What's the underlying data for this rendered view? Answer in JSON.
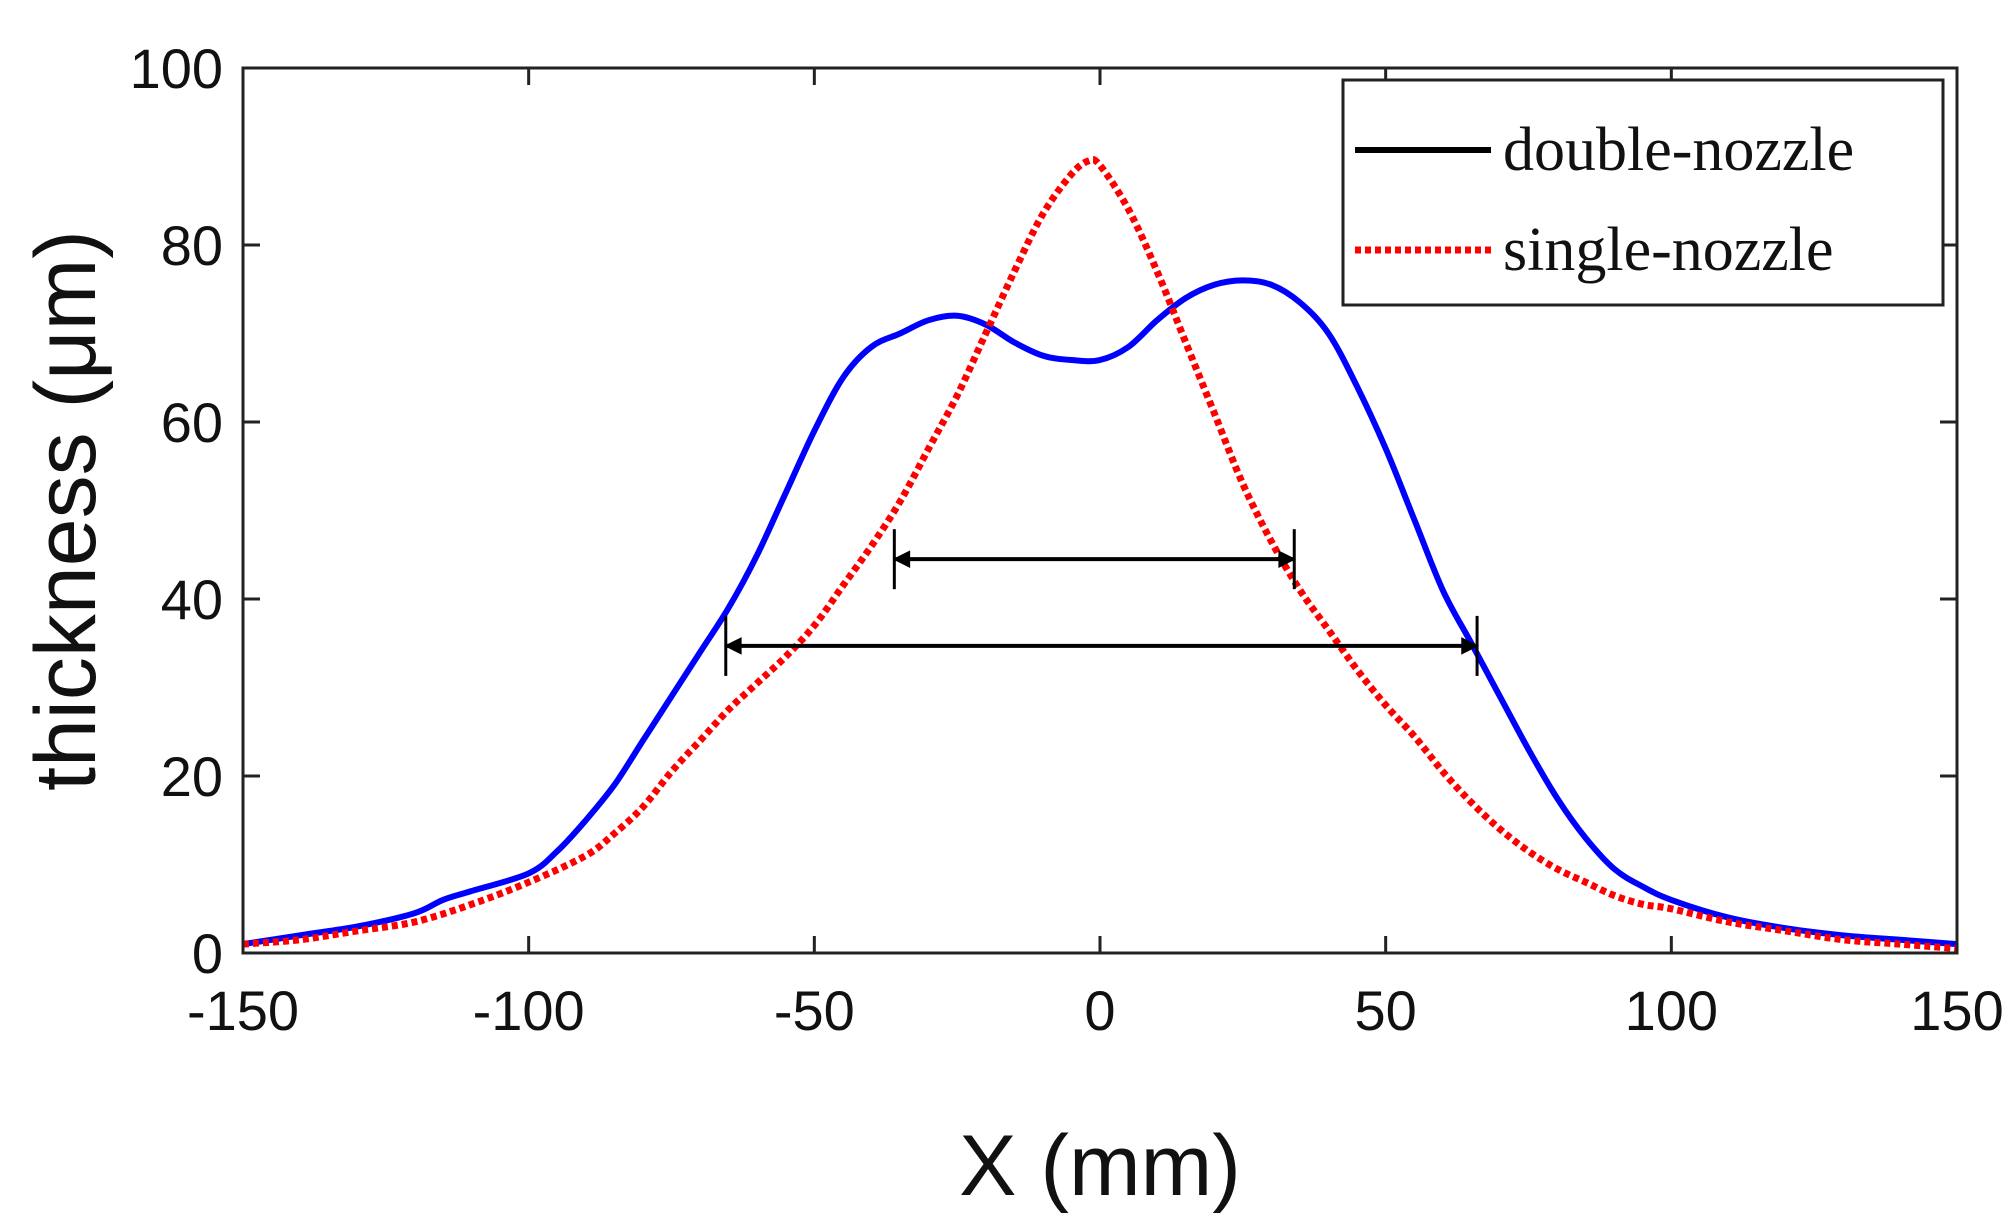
{
  "chart_data": {
    "type": "line",
    "title": "",
    "xlabel": "X (mm)",
    "ylabel": "thickness (μm)",
    "xlim": [
      -150,
      150
    ],
    "ylim": [
      0,
      100
    ],
    "xticks": [
      -150,
      -100,
      -50,
      0,
      50,
      100,
      150
    ],
    "yticks": [
      0,
      20,
      40,
      60,
      80,
      100
    ],
    "grid": false,
    "legend_position": "top-right",
    "series": [
      {
        "name": "double-nozzle",
        "line_color": "#0000ff",
        "legend_color": "#000000",
        "style": "solid",
        "x": [
          -150,
          -140,
          -130,
          -120,
          -115,
          -110,
          -100,
          -95,
          -90,
          -85,
          -80,
          -75,
          -70,
          -65,
          -60,
          -55,
          -50,
          -45,
          -40,
          -35,
          -30,
          -25,
          -20,
          -15,
          -10,
          -5,
          0,
          5,
          10,
          15,
          20,
          25,
          30,
          35,
          40,
          45,
          50,
          55,
          60,
          65,
          70,
          75,
          80,
          85,
          90,
          95,
          100,
          110,
          120,
          130,
          140,
          150
        ],
        "values": [
          1,
          2,
          3,
          4.5,
          6,
          7,
          9,
          11.5,
          15,
          19,
          24,
          29,
          34,
          39,
          45,
          52,
          59,
          65,
          68.5,
          70,
          71.5,
          72,
          71,
          69,
          67.5,
          67,
          67,
          68.5,
          71.5,
          74,
          75.5,
          76,
          75.5,
          73.5,
          70,
          64,
          57,
          49,
          41,
          35,
          29,
          23,
          17.5,
          13,
          9.5,
          7.5,
          6,
          4,
          2.8,
          2,
          1.5,
          1
        ]
      },
      {
        "name": "single-nozzle",
        "line_color": "#ff0000",
        "legend_color": "#ff0000",
        "style": "dotted",
        "x": [
          -150,
          -140,
          -130,
          -120,
          -110,
          -100,
          -90,
          -85,
          -80,
          -75,
          -70,
          -65,
          -60,
          -55,
          -50,
          -45,
          -40,
          -35,
          -30,
          -25,
          -20,
          -15,
          -10,
          -5,
          -2,
          0,
          5,
          10,
          15,
          20,
          25,
          30,
          35,
          40,
          45,
          50,
          55,
          60,
          65,
          70,
          75,
          80,
          85,
          90,
          95,
          100,
          110,
          120,
          130,
          140,
          150
        ],
        "values": [
          1,
          1.5,
          2.5,
          3.5,
          5.5,
          8,
          11,
          13.5,
          16.5,
          20.5,
          24,
          27.5,
          30.5,
          33.5,
          37,
          41.5,
          46,
          51,
          57,
          63,
          70,
          77,
          83.5,
          88,
          89.5,
          89,
          84,
          77,
          69,
          61,
          53,
          46.5,
          41,
          36.5,
          32,
          28,
          24.5,
          20.5,
          17,
          14,
          11.5,
          9.5,
          8,
          6.5,
          5.5,
          5,
          3.5,
          2.5,
          1.5,
          1,
          0.5
        ]
      }
    ],
    "annotations": [
      {
        "type": "double-arrow",
        "x_from": -36,
        "x_to": 34,
        "y": 44.5
      },
      {
        "type": "double-arrow",
        "x_from": -65.5,
        "x_to": 66,
        "y": 34.7
      }
    ]
  }
}
